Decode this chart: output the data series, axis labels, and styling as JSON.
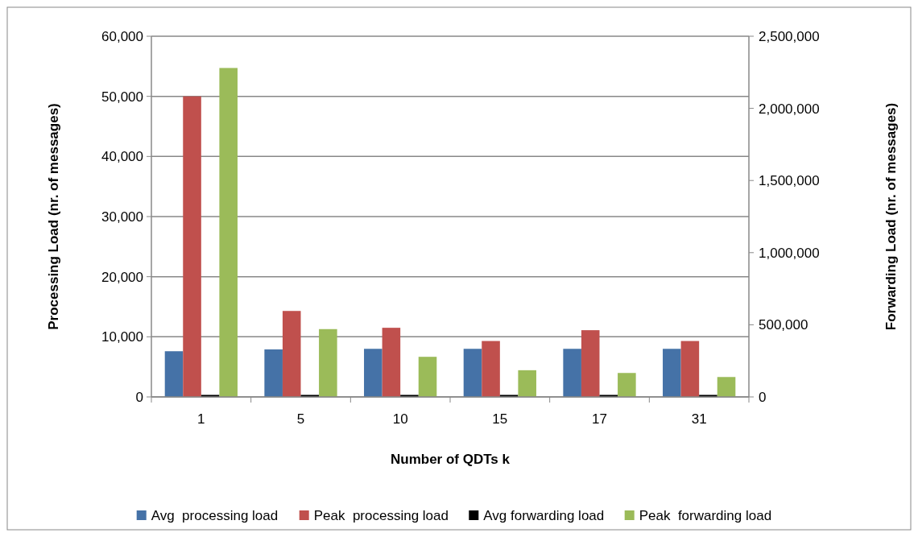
{
  "chart_data": {
    "type": "bar",
    "xlabel": "Number of QDTs k",
    "ylabel": "Processing Load (nr. of messages)",
    "y2label": "Forwarding Load (nr. of messages)",
    "categories": [
      "1",
      "5",
      "10",
      "15",
      "17",
      "31"
    ],
    "series": [
      {
        "name": "Avg  processing load",
        "color": "#4572a7",
        "values": [
          7600,
          7900,
          8000,
          8000,
          8000,
          8000
        ]
      },
      {
        "name": "Peak  processing load",
        "color": "#c0504d",
        "values": [
          50000,
          14300,
          11500,
          9300,
          11100,
          9300
        ]
      },
      {
        "name": "Avg forwarding load",
        "color": "#000000",
        "axis": "y2",
        "values": [
          14000,
          14000,
          14000,
          14000,
          14000,
          14000
        ]
      },
      {
        "name": "Peak  forwarding load",
        "color": "#9bbb59",
        "axis": "y2",
        "values": [
          2280000,
          470000,
          278000,
          185000,
          166000,
          138000
        ]
      }
    ],
    "ylim": [
      0,
      60000
    ],
    "yticks": [
      {
        "value": 0,
        "label": "0"
      },
      {
        "value": 10000,
        "label": "10,000"
      },
      {
        "value": 20000,
        "label": "20,000"
      },
      {
        "value": 30000,
        "label": "30,000"
      },
      {
        "value": 40000,
        "label": "40,000"
      },
      {
        "value": 50000,
        "label": "50,000"
      },
      {
        "value": 60000,
        "label": "60,000"
      }
    ],
    "y2lim": [
      0,
      2500000
    ],
    "y2ticks": [
      {
        "value": 0,
        "label": "0"
      },
      {
        "value": 500000,
        "label": "500,000"
      },
      {
        "value": 1000000,
        "label": "1,000,000"
      },
      {
        "value": 1500000,
        "label": "1,500,000"
      },
      {
        "value": 2000000,
        "label": "2,000,000"
      },
      {
        "value": 2500000,
        "label": "2,500,000"
      }
    ],
    "grid": "y",
    "legend": "bottom"
  }
}
